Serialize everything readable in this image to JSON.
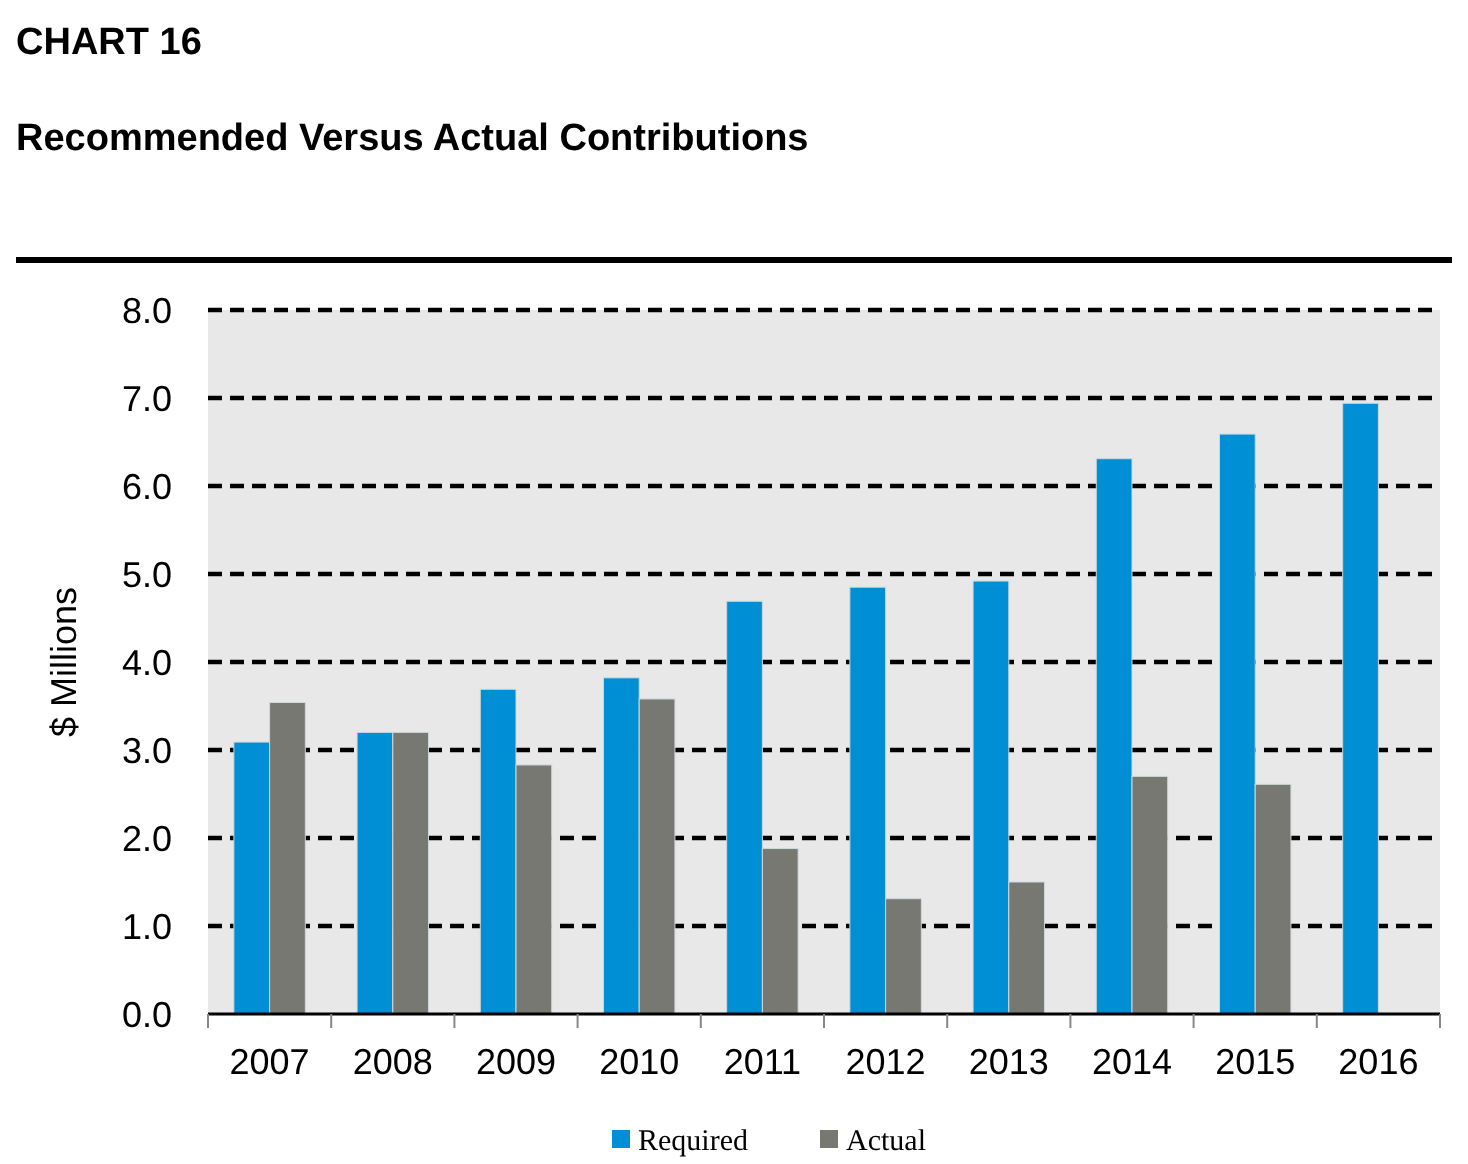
{
  "chart_data": {
    "type": "bar",
    "title": "CHART 16",
    "subtitle": "Recommended Versus Actual Contributions",
    "ylabel": "$ Millions",
    "categories": [
      "2007",
      "2008",
      "2009",
      "2010",
      "2011",
      "2012",
      "2013",
      "2014",
      "2015",
      "2016"
    ],
    "series": [
      {
        "name": "Required",
        "color": "#008fd5",
        "values": [
          3.09,
          3.2,
          3.69,
          3.82,
          4.69,
          4.85,
          4.92,
          6.31,
          6.59,
          6.94
        ]
      },
      {
        "name": "Actual",
        "color": "#787873",
        "values": [
          3.54,
          3.2,
          2.83,
          3.58,
          1.88,
          1.31,
          1.5,
          2.7,
          2.61,
          null
        ]
      }
    ],
    "ylim": [
      0,
      8
    ],
    "yticks": [
      {
        "value": 0,
        "label": "0.0"
      },
      {
        "value": 1,
        "label": "1.0"
      },
      {
        "value": 2,
        "label": "2.0"
      },
      {
        "value": 3,
        "label": "3.0"
      },
      {
        "value": 4,
        "label": "4.0"
      },
      {
        "value": 5,
        "label": "5.0"
      },
      {
        "value": 6,
        "label": "6.0"
      },
      {
        "value": 7,
        "label": "7.0"
      },
      {
        "value": 8,
        "label": "8.0"
      }
    ],
    "grid": "y",
    "legend": "bottom"
  }
}
